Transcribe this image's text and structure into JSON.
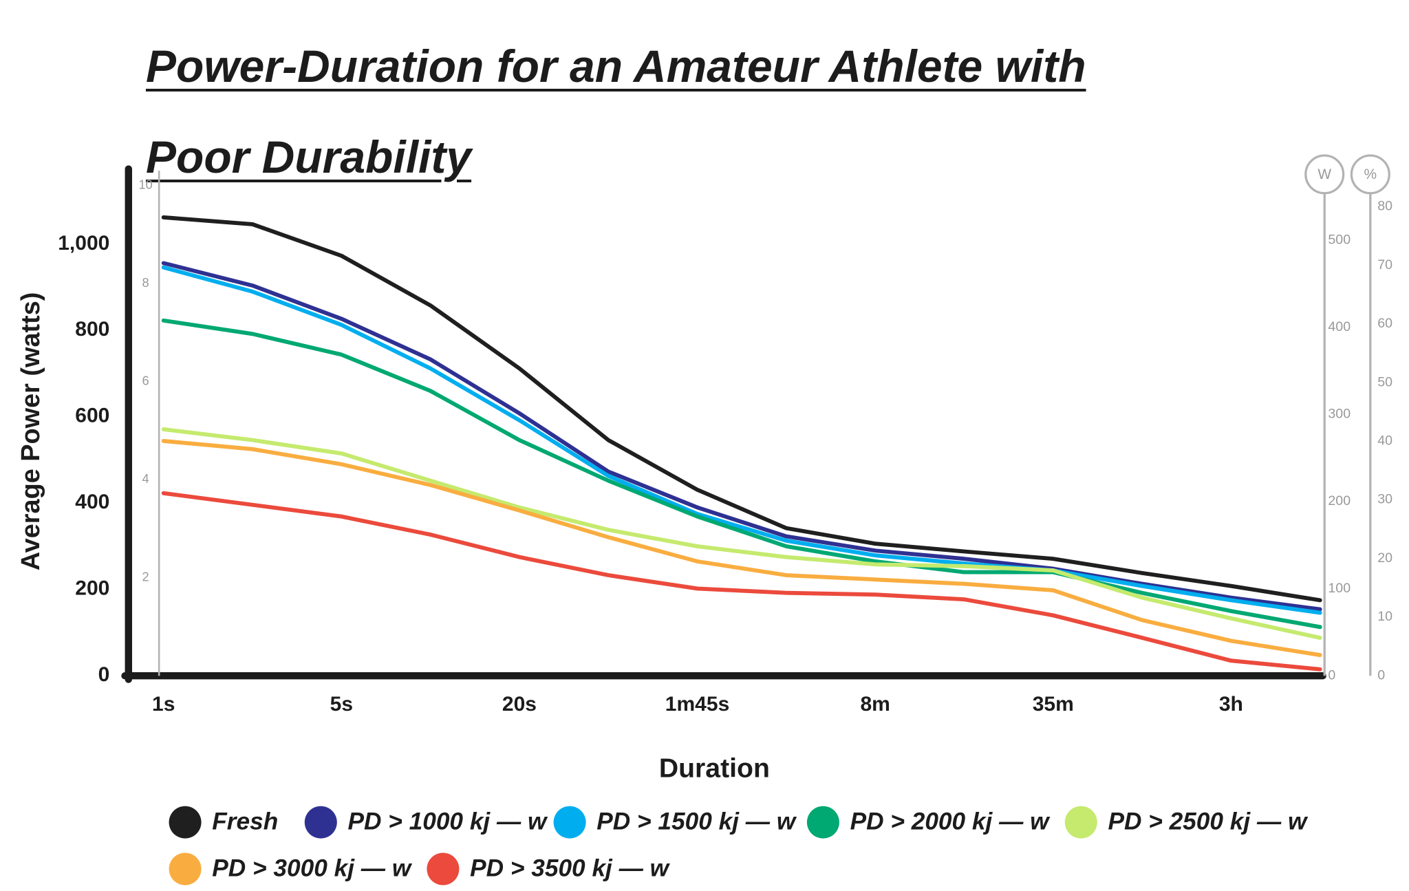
{
  "chart_data": {
    "type": "line",
    "title": "Power-Duration for an Amateur Athlete with Poor Durability",
    "x_label": "Duration",
    "y_label": "Average Power (watts)",
    "categories": [
      "1s",
      null,
      "5s",
      null,
      "20s",
      null,
      "1m45s",
      null,
      "8m",
      null,
      "35m",
      null,
      "3h",
      null
    ],
    "ylim": [
      0,
      1170
    ],
    "yticks": [
      0,
      200,
      400,
      600,
      800,
      {
        "value": 1000,
        "label": "1,000"
      }
    ],
    "wkg_lim": [
      0,
      10.3
    ],
    "wkg_ticks": [
      2,
      4,
      6,
      8,
      10
    ],
    "w_axis_label": "W",
    "w_lim": [
      0,
      554
    ],
    "w_ticks": [
      0,
      100,
      200,
      300,
      400,
      500
    ],
    "pct_axis_label": "%",
    "pct_lim": [
      0,
      82.3
    ],
    "pct_ticks": [
      0,
      10,
      20,
      30,
      40,
      50,
      60,
      70,
      80
    ],
    "series": [
      {
        "name": "Fresh",
        "color": "#1f1f1f",
        "values": [
          1062,
          1046,
          973,
          858,
          712,
          546,
          431,
          342,
          306,
          288,
          271,
          238,
          208,
          175
        ]
      },
      {
        "name": "PD > 1000 kj — w",
        "color": "#2e3192",
        "values": [
          956,
          904,
          827,
          733,
          608,
          473,
          390,
          323,
          290,
          271,
          248,
          213,
          181,
          154
        ]
      },
      {
        "name": "PD > 1500 kj — w",
        "color": "#00aeef",
        "values": [
          946,
          890,
          813,
          712,
          592,
          463,
          375,
          313,
          279,
          260,
          244,
          208,
          175,
          146
        ]
      },
      {
        "name": "PD > 2000 kj — w",
        "color": "#00a872",
        "values": [
          823,
          792,
          744,
          660,
          546,
          452,
          369,
          300,
          265,
          240,
          240,
          192,
          150,
          113
        ]
      },
      {
        "name": "PD > 2500 kj — w",
        "color": "#c5ea6e",
        "values": [
          571,
          546,
          515,
          452,
          390,
          338,
          300,
          275,
          258,
          254,
          244,
          181,
          133,
          88
        ]
      },
      {
        "name": "PD > 3000 kj — w",
        "color": "#f9ad40",
        "values": [
          544,
          525,
          490,
          442,
          383,
          321,
          265,
          233,
          223,
          213,
          198,
          129,
          81,
          48
        ]
      },
      {
        "name": "PD > 3500 kj — w",
        "color": "#eb4a3c",
        "values": [
          423,
          396,
          369,
          327,
          275,
          233,
          202,
          192,
          188,
          177,
          140,
          88,
          35,
          15
        ]
      }
    ]
  }
}
